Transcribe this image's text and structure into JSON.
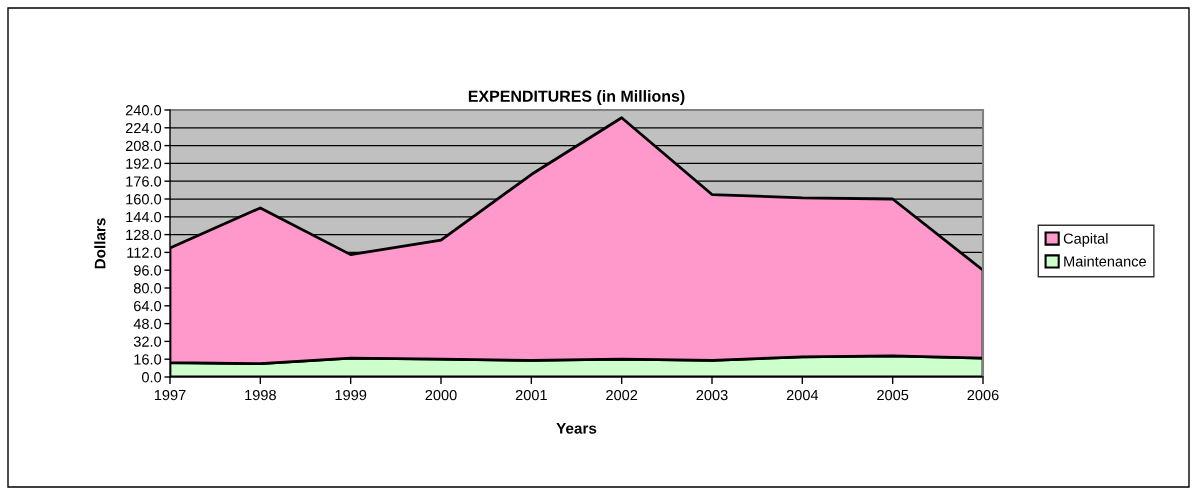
{
  "chart_data": {
    "type": "area",
    "title": "EXPENDITURES (in Millions)",
    "xlabel": "Years",
    "ylabel": "Dollars",
    "categories": [
      "1997",
      "1998",
      "1999",
      "2000",
      "2001",
      "2002",
      "2003",
      "2004",
      "2005",
      "2006"
    ],
    "series": [
      {
        "name": "Maintenance",
        "color": "#ccffcc",
        "values": [
          13,
          12,
          17,
          16,
          15,
          16,
          15,
          18,
          19,
          17
        ]
      },
      {
        "name": "Capital",
        "color": "#ff99cc",
        "values": [
          103,
          140,
          93,
          107,
          167,
          217,
          149,
          143,
          141,
          79
        ]
      }
    ],
    "stacked": true,
    "ylim": [
      0,
      240
    ],
    "yticks": [
      {
        "value": 0,
        "label": "0.0"
      },
      {
        "value": 16,
        "label": "16.0"
      },
      {
        "value": 32,
        "label": "32.0"
      },
      {
        "value": 48,
        "label": "48.0"
      },
      {
        "value": 64,
        "label": "64.0"
      },
      {
        "value": 80,
        "label": "80.0"
      },
      {
        "value": 96,
        "label": "96.0"
      },
      {
        "value": 112,
        "label": "112.0"
      },
      {
        "value": 128,
        "label": "128.0"
      },
      {
        "value": 144,
        "label": "144.0"
      },
      {
        "value": 160,
        "label": "160.0"
      },
      {
        "value": 176,
        "label": "176.0"
      },
      {
        "value": 192,
        "label": "192.0"
      },
      {
        "value": 208,
        "label": "208.0"
      },
      {
        "value": 224,
        "label": "224.0"
      },
      {
        "value": 240,
        "label": "240.0"
      }
    ],
    "grid": "y",
    "legend": "right"
  }
}
